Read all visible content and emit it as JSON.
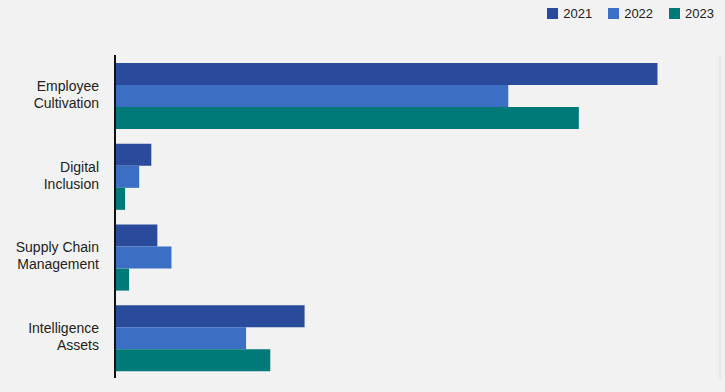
{
  "chart_data": {
    "type": "bar",
    "orientation": "horizontal",
    "categories": [
      "Employee Cultivation",
      "Digital Inclusion",
      "Supply Chain Management",
      "Intelligence Assets"
    ],
    "series": [
      {
        "name": "2021",
        "color": "#2a4a9c",
        "values": [
          2.69,
          0.18,
          0.21,
          0.94
        ]
      },
      {
        "name": "2022",
        "color": "#3a6fc4",
        "values": [
          1.95,
          0.12,
          0.28,
          0.65
        ]
      },
      {
        "name": "2023",
        "color": "#007a78",
        "values": [
          2.3,
          0.05,
          0.07,
          0.77
        ]
      }
    ],
    "xlim": [
      0,
      3
    ],
    "xticks": [
      0,
      1,
      2,
      3
    ],
    "grid": true,
    "legend": "top-right",
    "tick_labels": false
  }
}
